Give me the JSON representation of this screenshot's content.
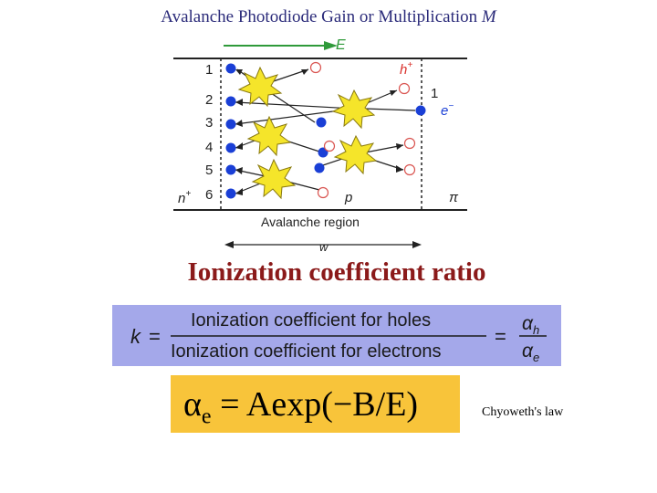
{
  "title": {
    "text": "Avalanche Photodiode Gain or Multiplication",
    "symbol": "M"
  },
  "diagram": {
    "field_label": "E",
    "row_numbers": [
      "1",
      "2",
      "3",
      "4",
      "5",
      "6"
    ],
    "hole_label": "h",
    "hole_superscript": "+",
    "electron_number": "1",
    "electron_label": "e",
    "electron_superscript": "−",
    "left_region": "n",
    "left_region_superscript": "+",
    "p_label": "p",
    "pi_label": "π",
    "region_caption": "Avalanche region",
    "width_label": "w",
    "colors": {
      "electron": "#1a3fd6",
      "spark": "#f5e52a",
      "hole_outline": "#d9534f",
      "arrow": "#222222",
      "field_arrow": "#2f9a3a"
    }
  },
  "subtitle": "Ionization coefficient ratio",
  "k_equation": {
    "lhs": "k",
    "numerator": "Ionization coefficient for holes",
    "denominator": "Ionization coefficient for electrons",
    "alpha": "α",
    "sub_h": "h",
    "sub_e": "e",
    "equals": "="
  },
  "law_formula": {
    "alpha": "α",
    "subscript": "e",
    "rhs": " = Aexp(−B/E)"
  },
  "law_label": "Chyoweth's law"
}
